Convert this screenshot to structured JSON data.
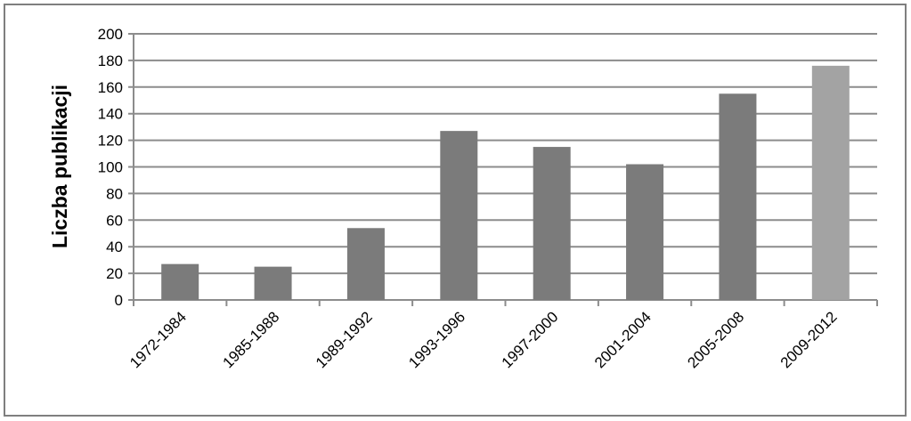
{
  "chart_data": {
    "type": "bar",
    "y_label": "Liczba publikacji",
    "categories": [
      "1972-1984",
      "1985-1988",
      "1989-1992",
      "1993-1996",
      "1997-2000",
      "2001-2004",
      "2005-2008",
      "2009-2012"
    ],
    "values": [
      27,
      25,
      54,
      127,
      115,
      102,
      155,
      176
    ],
    "colors": [
      "#7b7b7b",
      "#7b7b7b",
      "#7b7b7b",
      "#7b7b7b",
      "#7b7b7b",
      "#7b7b7b",
      "#7b7b7b",
      "#a3a3a3"
    ],
    "ylim": [
      0,
      200
    ],
    "yticks": [
      0,
      20,
      40,
      60,
      80,
      100,
      120,
      140,
      160,
      180,
      200
    ],
    "grid": true
  }
}
